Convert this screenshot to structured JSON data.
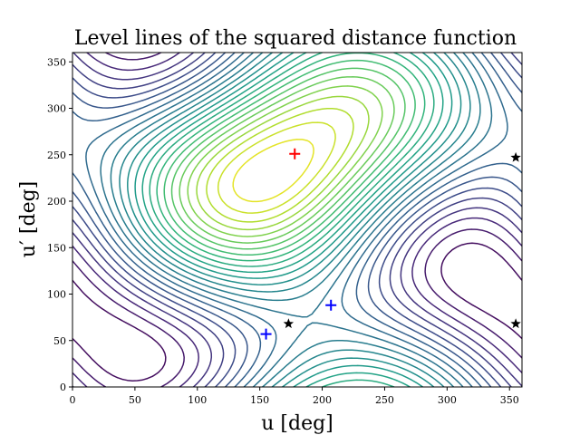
{
  "chart_data": {
    "type": "contour",
    "title": "Level lines of the squared distance function",
    "xlabel": "u [deg]",
    "ylabel": "u′ [deg]",
    "xlim": [
      0,
      360
    ],
    "ylim": [
      0,
      360
    ],
    "xticks": [
      0,
      50,
      100,
      150,
      200,
      250,
      300,
      350
    ],
    "yticks": [
      0,
      50,
      100,
      150,
      200,
      250,
      300,
      350
    ],
    "colormap": "viridis",
    "maximum_marker": {
      "x": 178,
      "y": 251,
      "color": "#ff0000",
      "symbol": "+"
    },
    "critical_points_plus": [
      {
        "x": 155,
        "y": 57,
        "color": "#0000ff",
        "symbol": "+"
      },
      {
        "x": 207,
        "y": 88,
        "color": "#0000ff",
        "symbol": "+"
      }
    ],
    "critical_points_star": [
      {
        "x": 173,
        "y": 68,
        "color": "#000000",
        "symbol": "★"
      },
      {
        "x": 355,
        "y": 247,
        "color": "#000000",
        "symbol": "★"
      },
      {
        "x": 355,
        "y": 68,
        "color": "#000000",
        "symbol": "★"
      }
    ],
    "grid": false
  }
}
